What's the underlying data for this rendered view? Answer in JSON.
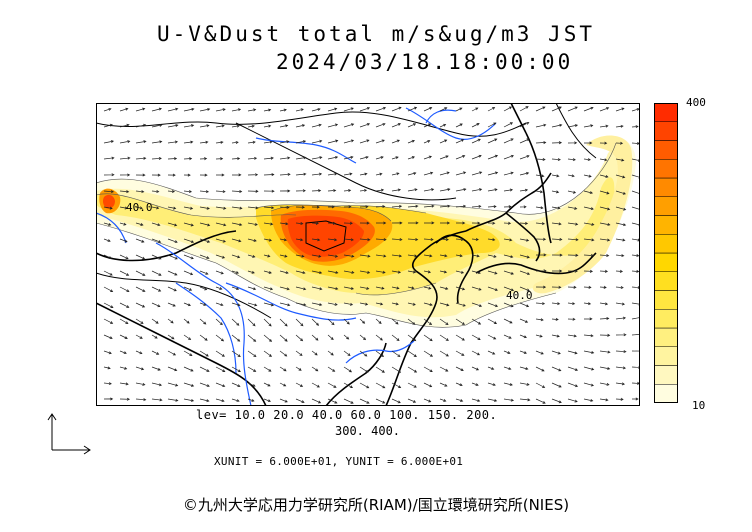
{
  "title": {
    "line1": "U-V&Dust total m/s&ug/m3 JST",
    "line2": "2024/03/18.18:00:00"
  },
  "colorbar": {
    "max_label": "400",
    "min_label": "10",
    "colors": [
      "#fffde0",
      "#fff8c0",
      "#fff4a0",
      "#fff080",
      "#ffec60",
      "#ffe640",
      "#ffdf20",
      "#ffd700",
      "#ffc800",
      "#ffb400",
      "#ff9f00",
      "#ff8a00",
      "#ff7400",
      "#ff5c00",
      "#ff4400",
      "#ff2c00"
    ]
  },
  "levels": {
    "line1": "lev= 10.0 20.0 40.0 60.0 100. 150. 200.",
    "line2": "300. 400."
  },
  "contour_labels": {
    "west": "40.0",
    "east": "40.0"
  },
  "units": "XUNIT = 6.000E+01, YUNIT = 6.000E+01",
  "copyright": "©九州大学応用力学研究所(RIAM)/国立環境研究所(NIES)",
  "map_colors": {
    "coast": "#000000",
    "river": "#1e5bff",
    "arrow": "#222222"
  }
}
